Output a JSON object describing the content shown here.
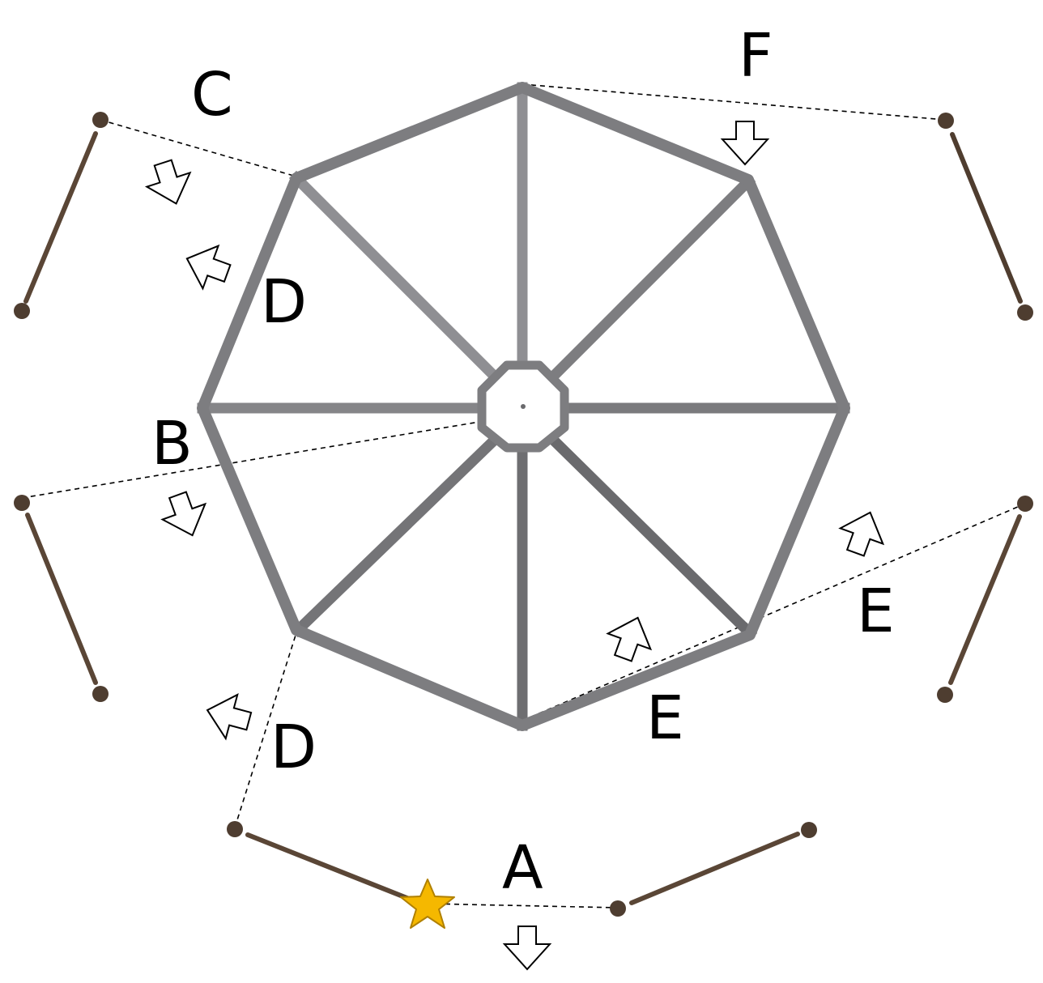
{
  "labels": {
    "a": "A",
    "b": "B",
    "c": "C",
    "d_upper": "D",
    "d_lower": "D",
    "e_inner": "E",
    "e_outer": "E",
    "f": "F"
  },
  "colors": {
    "frame_outer": "#7d7d80",
    "frame_spoke_light": "#8f8f93",
    "frame_spoke_dark": "#6a6a6d",
    "post_line": "#5a4636",
    "post_dot": "#4e3d30",
    "star_fill": "#f5b800",
    "star_stroke": "#b08000",
    "arrow_fill": "#ffffff",
    "arrow_stroke": "#000000",
    "dashed": "#000000"
  },
  "icons": {
    "marker": "star-icon",
    "direction": "arrow-icon"
  }
}
